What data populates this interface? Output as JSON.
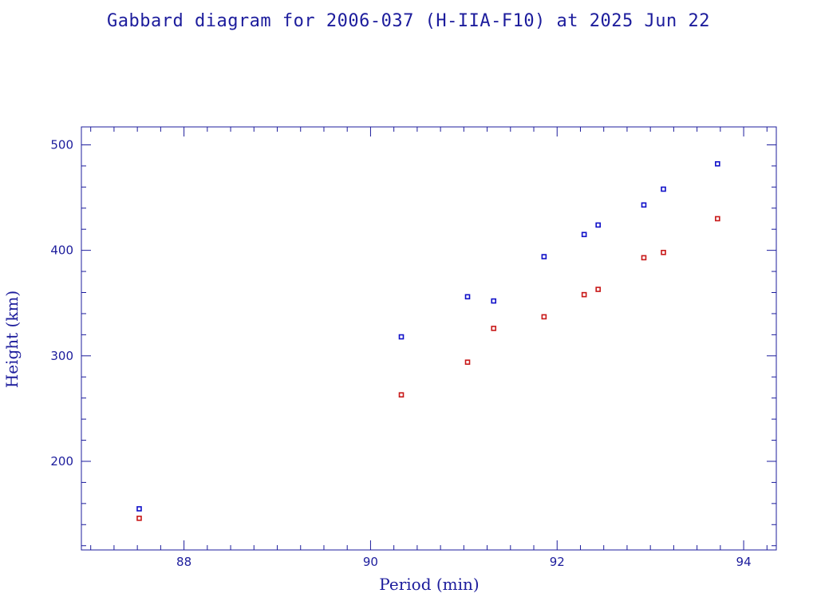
{
  "chart_data": {
    "type": "scatter",
    "title": "Gabbard diagram for 2006-037 (H-IIA-F10) at 2025 Jun 22",
    "xlabel": "Period (min)",
    "ylabel": "Height (km)",
    "xlim": [
      86.9,
      94.35
    ],
    "ylim": [
      116,
      517
    ],
    "xticks": [
      88,
      90,
      92,
      94
    ],
    "yticks": [
      200,
      300,
      400,
      500
    ],
    "x_minor_step": 0.25,
    "y_minor_step": 20,
    "grid": false,
    "colors": {
      "axis": "#1c1c9c",
      "apogee": "#1010c8",
      "perigee": "#c81818"
    },
    "series": [
      {
        "key": "apogee",
        "points": [
          [
            87.52,
            155
          ],
          [
            90.33,
            318
          ],
          [
            91.04,
            356
          ],
          [
            91.32,
            352
          ],
          [
            91.86,
            394
          ],
          [
            92.29,
            415
          ],
          [
            92.44,
            424
          ],
          [
            92.93,
            443
          ],
          [
            93.14,
            458
          ],
          [
            93.72,
            482
          ]
        ]
      },
      {
        "key": "perigee",
        "points": [
          [
            87.52,
            146
          ],
          [
            90.33,
            263
          ],
          [
            91.04,
            294
          ],
          [
            91.32,
            326
          ],
          [
            91.86,
            337
          ],
          [
            92.29,
            358
          ],
          [
            92.44,
            363
          ],
          [
            92.93,
            393
          ],
          [
            93.14,
            398
          ],
          [
            93.72,
            430
          ]
        ]
      }
    ]
  }
}
